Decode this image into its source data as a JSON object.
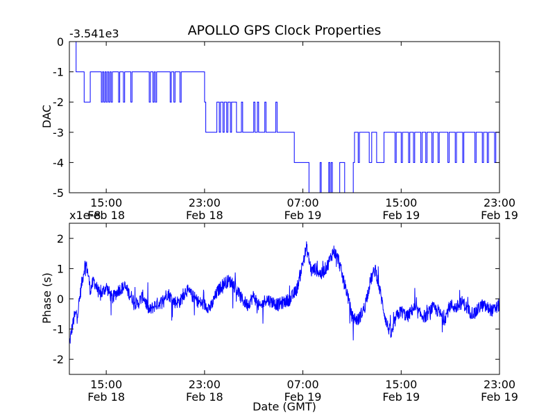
{
  "chart_data": [
    {
      "type": "line",
      "title": "APOLLO GPS Clock Properties",
      "xlabel": "",
      "ylabel": "DAC",
      "y_offset_label": "-3.541e3",
      "xlim": [
        0,
        35
      ],
      "ylim": [
        -5,
        0
      ],
      "x_ticks": [
        {
          "x": 3,
          "top": "15:00",
          "bottom": "Feb 18"
        },
        {
          "x": 11,
          "top": "23:00",
          "bottom": "Feb 18"
        },
        {
          "x": 19,
          "top": "07:00",
          "bottom": "Feb 19"
        },
        {
          "x": 27,
          "top": "15:00",
          "bottom": "Feb 19"
        },
        {
          "x": 35,
          "top": "23:00",
          "bottom": "Feb 19"
        }
      ],
      "y_ticks": [
        {
          "y": 0,
          "label": "0"
        },
        {
          "y": -1,
          "label": "-1"
        },
        {
          "y": -2,
          "label": "-2"
        },
        {
          "y": -3,
          "label": "-3"
        },
        {
          "y": -4,
          "label": "-4"
        },
        {
          "y": -5,
          "label": "-5"
        }
      ],
      "color": "#0000ff",
      "series": [
        {
          "step": true,
          "x": [
            0,
            0.55,
            1.2,
            1.7,
            2.6,
            2.7,
            2.8,
            2.9,
            3.0,
            3.1,
            3.2,
            3.3,
            3.4,
            3.5,
            4.0,
            4.1,
            4.4,
            4.5,
            5.0,
            5.1,
            6.5,
            6.6,
            6.8,
            6.9,
            7.0,
            7.1,
            8.2,
            8.3,
            8.5,
            8.6,
            9.0,
            9.1,
            11.0,
            11.1,
            12.0,
            12.2,
            12.3,
            12.5,
            12.6,
            12.8,
            12.9,
            13.1,
            13.2,
            13.6,
            14.0,
            14.1,
            15.0,
            15.1,
            15.3,
            15.4,
            15.9,
            16.0,
            16.8,
            16.9,
            18.2,
            18.3,
            19.1,
            19.5,
            20.4,
            20.5,
            21.1,
            21.2,
            21.3,
            21.4,
            22.0,
            22.4,
            23.1,
            23.2,
            23.5,
            23.6,
            24.4,
            24.6,
            25.0,
            25.6,
            26.5,
            26.6,
            27.0,
            27.1,
            27.6,
            27.7,
            28.0,
            28.1,
            28.6,
            28.7,
            29.0,
            29.1,
            29.5,
            29.6,
            30.0,
            30.1,
            30.8,
            30.9,
            31.4,
            31.5,
            32.0,
            32.1,
            33.0,
            33.1,
            33.6,
            33.7,
            34.0,
            34.1,
            34.6,
            34.7,
            35.0
          ],
          "y": [
            0,
            -1,
            -2,
            -1,
            -2,
            -1,
            -2,
            -1,
            -2,
            -1,
            -2,
            -1,
            -2,
            -1,
            -2,
            -1,
            -2,
            -1,
            -2,
            -1,
            -2,
            -1,
            -2,
            -1,
            -2,
            -1,
            -2,
            -1,
            -2,
            -1,
            -2,
            -1,
            -2,
            -3,
            -2,
            -3,
            -2,
            -3,
            -2,
            -3,
            -2,
            -3,
            -2,
            -3,
            -2,
            -3,
            -2,
            -3,
            -2,
            -3,
            -2,
            -3,
            -2,
            -3,
            -3,
            -4,
            -4,
            -5,
            -4,
            -5,
            -4,
            -5,
            -4,
            -5,
            -4,
            -5,
            -4,
            -3,
            -4,
            -3,
            -4,
            -3,
            -4,
            -3,
            -4,
            -3,
            -4,
            -3,
            -4,
            -3,
            -4,
            -3,
            -4,
            -3,
            -4,
            -3,
            -4,
            -3,
            -4,
            -3,
            -4,
            -3,
            -4,
            -3,
            -4,
            -3,
            -4,
            -3,
            -4,
            -3,
            -4,
            -3,
            -4,
            -3,
            -4
          ]
        }
      ]
    },
    {
      "type": "line",
      "title": "",
      "xlabel": "Date (GMT)",
      "ylabel": "Phase (s)",
      "y_offset_label": "x1e-8",
      "xlim": [
        0,
        35
      ],
      "ylim": [
        -2.5,
        2.5
      ],
      "x_ticks": [
        {
          "x": 3,
          "top": "15:00",
          "bottom": "Feb 18"
        },
        {
          "x": 11,
          "top": "23:00",
          "bottom": "Feb 18"
        },
        {
          "x": 19,
          "top": "07:00",
          "bottom": "Feb 19"
        },
        {
          "x": 27,
          "top": "15:00",
          "bottom": "Feb 19"
        },
        {
          "x": 35,
          "top": "23:00",
          "bottom": "Feb 19"
        }
      ],
      "y_ticks": [
        {
          "y": 2,
          "label": "2"
        },
        {
          "y": 1,
          "label": "1"
        },
        {
          "y": 0,
          "label": "0"
        },
        {
          "y": -1,
          "label": "-1"
        },
        {
          "y": -2,
          "label": "-2"
        }
      ],
      "color": "#0000ff",
      "series": [
        {
          "step": false,
          "noise": 0.22,
          "x": [
            0,
            0.2,
            0.4,
            0.7,
            1.0,
            1.3,
            1.5,
            1.7,
            2.0,
            2.5,
            3.0,
            3.5,
            4.0,
            4.5,
            5.0,
            5.5,
            6.0,
            6.5,
            7.0,
            7.5,
            8.0,
            8.5,
            9.0,
            9.5,
            10.0,
            10.5,
            11.0,
            11.5,
            12.0,
            12.5,
            13.0,
            13.5,
            14.0,
            14.5,
            15.0,
            15.5,
            16.0,
            16.5,
            17.0,
            17.5,
            18.0,
            18.5,
            19.0,
            19.3,
            19.7,
            20.0,
            20.5,
            21.0,
            21.5,
            21.9,
            22.3,
            22.6,
            23.0,
            23.5,
            24.0,
            24.5,
            24.9,
            25.3,
            25.8,
            26.2,
            26.6,
            27.0,
            27.5,
            28.0,
            28.5,
            29.0,
            29.5,
            30.0,
            30.5,
            31.0,
            31.5,
            32.0,
            32.5,
            33.0,
            33.5,
            34.0,
            34.5,
            35.0
          ],
          "y": [
            -1.5,
            -1.0,
            -0.6,
            -0.4,
            0.5,
            1.2,
            0.9,
            0.3,
            0.6,
            0.1,
            0.4,
            0.0,
            0.3,
            0.4,
            0.1,
            -0.2,
            0.1,
            -0.4,
            -0.2,
            -0.1,
            0.2,
            -0.1,
            -0.1,
            0.3,
            0.1,
            -0.1,
            -0.2,
            -0.3,
            0.2,
            0.5,
            0.6,
            0.4,
            0.0,
            -0.2,
            0.1,
            -0.3,
            0.0,
            -0.1,
            -0.2,
            -0.1,
            0.0,
            0.3,
            1.2,
            1.7,
            0.9,
            1.0,
            0.8,
            1.1,
            1.6,
            1.3,
            0.6,
            0.2,
            -0.6,
            -0.7,
            -0.3,
            0.6,
            1.0,
            0.2,
            -0.8,
            -1.2,
            -0.6,
            -0.4,
            -0.6,
            -0.3,
            -0.5,
            -0.6,
            -0.3,
            -0.4,
            -0.7,
            -0.2,
            -0.3,
            -0.1,
            -0.4,
            -0.5,
            -0.2,
            -0.3,
            -0.4,
            -0.2
          ]
        }
      ]
    }
  ]
}
